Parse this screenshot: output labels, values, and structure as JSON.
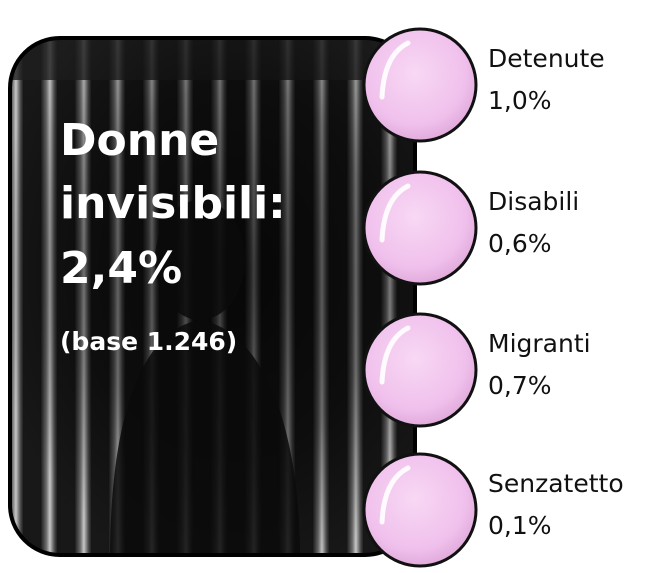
{
  "panel": {
    "title_lines": [
      "Donne",
      "invisibili:",
      "2,4%"
    ],
    "base": "(base 1.246)"
  },
  "items": [
    {
      "label": "Detenute",
      "value": "1,0%"
    },
    {
      "label": "Disabili",
      "value": "0,6%"
    },
    {
      "label": "Migranti",
      "value": "0,7%"
    },
    {
      "label": "Senzatetto",
      "value": "0,1%"
    }
  ]
}
